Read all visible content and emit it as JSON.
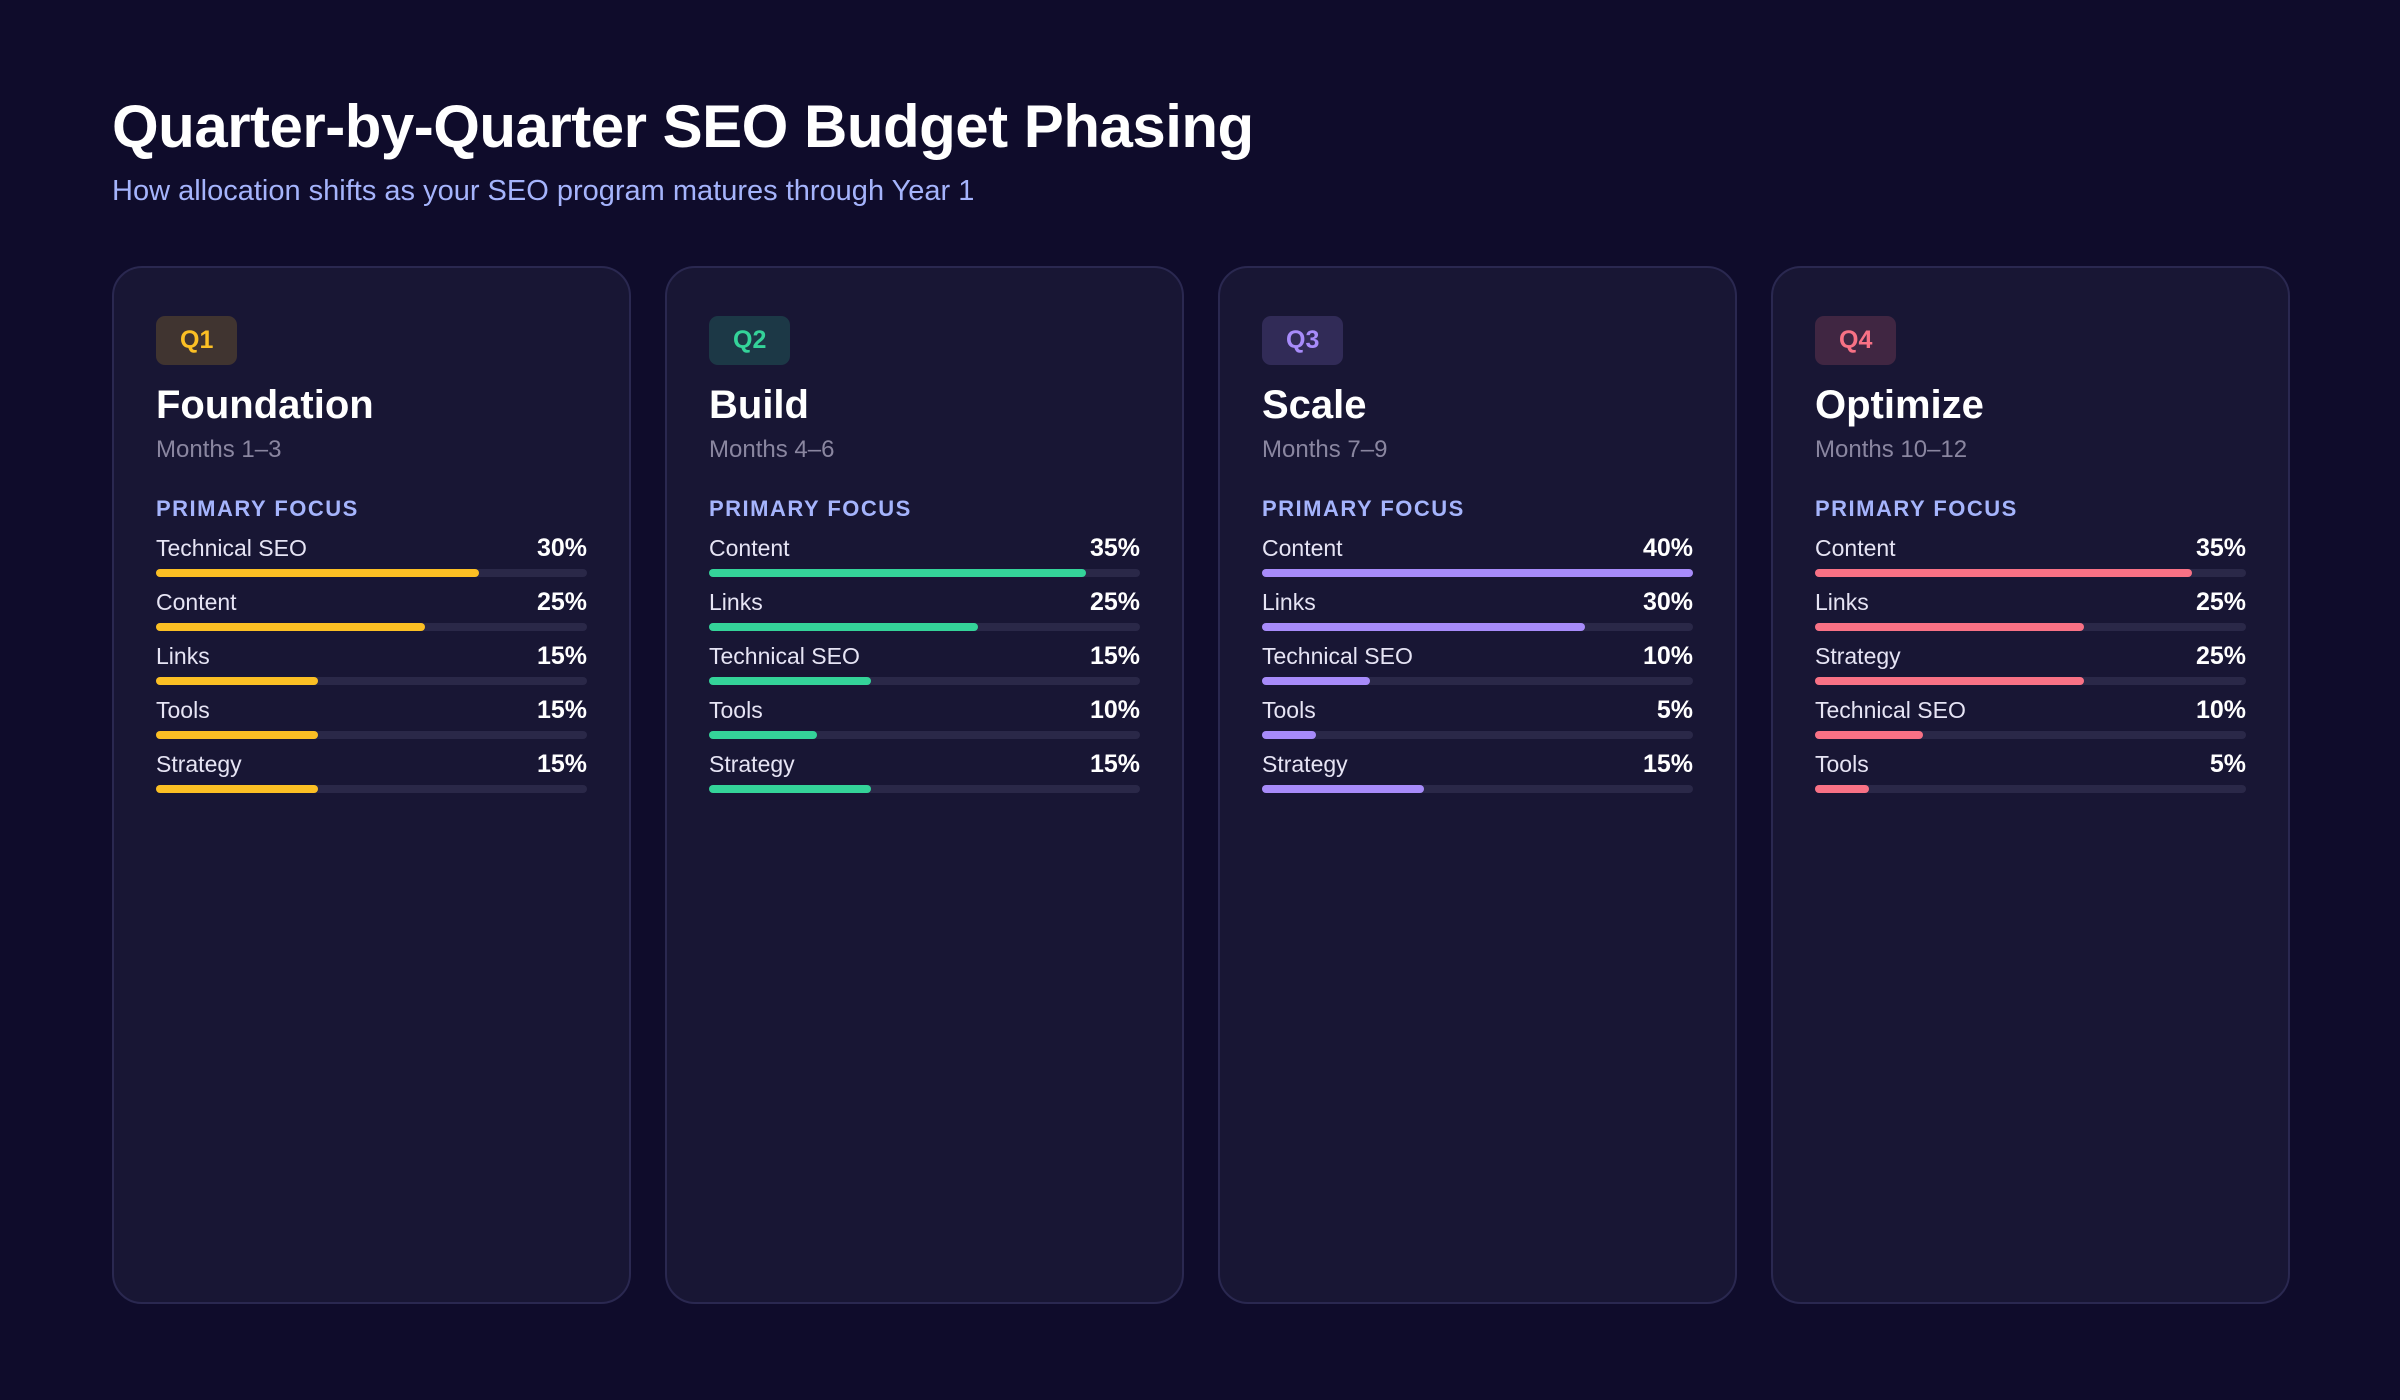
{
  "header": {
    "title": "Quarter-by-Quarter SEO Budget Phasing",
    "subtitle": "How allocation shifts as your SEO program matures through Year 1"
  },
  "cards": [
    {
      "badge": "Q1",
      "title": "Foundation",
      "months": "Months 1–3",
      "focus_label": "PRIMARY FOCUS",
      "color": "#fbbf24",
      "items": [
        {
          "name": "Technical SEO",
          "value": 30,
          "label": "30%"
        },
        {
          "name": "Content",
          "value": 25,
          "label": "25%"
        },
        {
          "name": "Links",
          "value": 15,
          "label": "15%"
        },
        {
          "name": "Tools",
          "value": 15,
          "label": "15%"
        },
        {
          "name": "Strategy",
          "value": 15,
          "label": "15%"
        }
      ]
    },
    {
      "badge": "Q2",
      "title": "Build",
      "months": "Months 4–6",
      "focus_label": "PRIMARY FOCUS",
      "color": "#34d399",
      "items": [
        {
          "name": "Content",
          "value": 35,
          "label": "35%"
        },
        {
          "name": "Links",
          "value": 25,
          "label": "25%"
        },
        {
          "name": "Technical SEO",
          "value": 15,
          "label": "15%"
        },
        {
          "name": "Tools",
          "value": 10,
          "label": "10%"
        },
        {
          "name": "Strategy",
          "value": 15,
          "label": "15%"
        }
      ]
    },
    {
      "badge": "Q3",
      "title": "Scale",
      "months": "Months 7–9",
      "focus_label": "PRIMARY FOCUS",
      "color": "#a78bfa",
      "items": [
        {
          "name": "Content",
          "value": 40,
          "label": "40%"
        },
        {
          "name": "Links",
          "value": 30,
          "label": "30%"
        },
        {
          "name": "Technical SEO",
          "value": 10,
          "label": "10%"
        },
        {
          "name": "Tools",
          "value": 5,
          "label": "5%"
        },
        {
          "name": "Strategy",
          "value": 15,
          "label": "15%"
        }
      ]
    },
    {
      "badge": "Q4",
      "title": "Optimize",
      "months": "Months 10–12",
      "focus_label": "PRIMARY FOCUS",
      "color": "#f87185",
      "items": [
        {
          "name": "Content",
          "value": 35,
          "label": "35%"
        },
        {
          "name": "Links",
          "value": 25,
          "label": "25%"
        },
        {
          "name": "Strategy",
          "value": 25,
          "label": "25%"
        },
        {
          "name": "Technical SEO",
          "value": 10,
          "label": "10%"
        },
        {
          "name": "Tools",
          "value": 5,
          "label": "5%"
        }
      ]
    }
  ]
}
